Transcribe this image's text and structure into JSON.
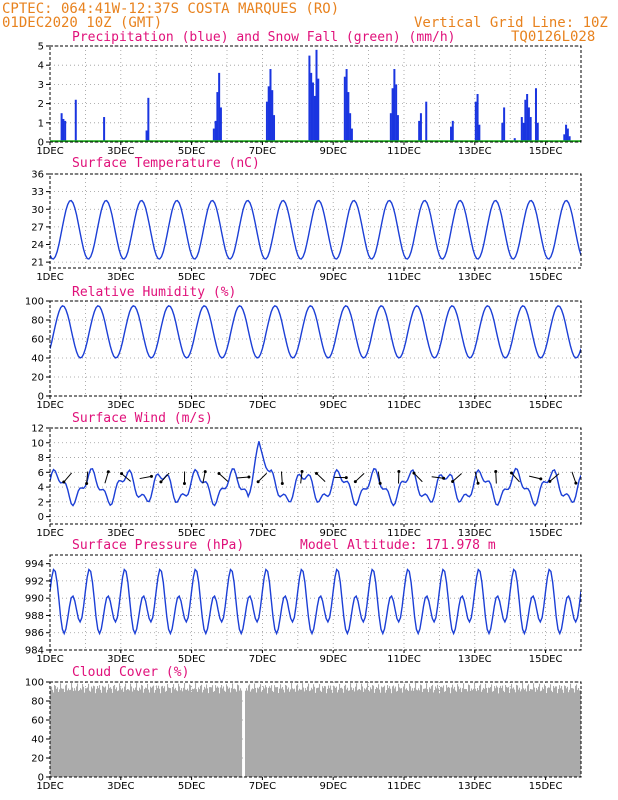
{
  "header": {
    "line1": "CPTEC:   064:41W-12:37S  COSTA MARQUES (RO)",
    "line2_left": "01DEC2020 10Z (GMT)",
    "line2_right": "Vertical Grid Line: 10Z",
    "line3_right": "TQ0126L028"
  },
  "colors": {
    "line": "#1c3fd6",
    "bar": "#1a35e0",
    "snow": "#1aa61a",
    "cloud": "#aaaaaa",
    "header": "#e8821e",
    "title": "#e0107a"
  },
  "x_labels": [
    "1DEC",
    "3DEC",
    "5DEC",
    "7DEC",
    "9DEC",
    "11DEC",
    "13DEC",
    "15DEC"
  ],
  "chart_data": [
    {
      "type": "bar",
      "title": "Precipitation (blue) and Snow Fall (green) (mm/h)",
      "ylim": [
        0,
        5
      ],
      "yticks": [
        "0",
        "1",
        "2",
        "3",
        "4",
        "5"
      ],
      "series": [
        {
          "name": "Precipitation",
          "points": [
            [
              0.3,
              1.5
            ],
            [
              0.35,
              1.2
            ],
            [
              0.4,
              1.1
            ],
            [
              0.7,
              2.2
            ],
            [
              1.5,
              1.3
            ],
            [
              2.7,
              0.6
            ],
            [
              2.75,
              2.3
            ],
            [
              4.6,
              0.7
            ],
            [
              4.65,
              1.1
            ],
            [
              4.7,
              2.6
            ],
            [
              4.75,
              3.6
            ],
            [
              4.8,
              1.8
            ],
            [
              6.1,
              2.1
            ],
            [
              6.15,
              2.9
            ],
            [
              6.2,
              3.8
            ],
            [
              6.25,
              2.7
            ],
            [
              6.3,
              1.4
            ],
            [
              7.3,
              4.5
            ],
            [
              7.35,
              3.6
            ],
            [
              7.4,
              3.1
            ],
            [
              7.45,
              2.4
            ],
            [
              7.5,
              4.8
            ],
            [
              7.55,
              3.3
            ],
            [
              8.3,
              3.4
            ],
            [
              8.35,
              3.8
            ],
            [
              8.4,
              2.6
            ],
            [
              8.45,
              1.5
            ],
            [
              8.5,
              0.7
            ],
            [
              9.6,
              1.5
            ],
            [
              9.65,
              2.8
            ],
            [
              9.7,
              3.8
            ],
            [
              9.75,
              3.0
            ],
            [
              9.8,
              1.4
            ],
            [
              10.4,
              1.1
            ],
            [
              10.45,
              1.5
            ],
            [
              10.6,
              2.1
            ],
            [
              11.3,
              0.8
            ],
            [
              11.35,
              1.1
            ],
            [
              12.0,
              2.1
            ],
            [
              12.05,
              2.5
            ],
            [
              12.1,
              0.9
            ],
            [
              12.75,
              1.0
            ],
            [
              12.8,
              1.8
            ],
            [
              13.1,
              0.2
            ],
            [
              13.3,
              1.3
            ],
            [
              13.35,
              1.0
            ],
            [
              13.4,
              2.2
            ],
            [
              13.45,
              2.5
            ],
            [
              13.5,
              1.8
            ],
            [
              13.55,
              1.3
            ],
            [
              13.7,
              2.8
            ],
            [
              13.75,
              1.0
            ],
            [
              14.5,
              0.4
            ],
            [
              14.55,
              0.9
            ],
            [
              14.6,
              0.7
            ],
            [
              14.65,
              0.3
            ],
            [
              15.0,
              1.3
            ],
            [
              15.05,
              0.5
            ],
            [
              15.4,
              1.7
            ],
            [
              15.45,
              2.9
            ],
            [
              15.5,
              1.5
            ]
          ]
        },
        {
          "name": "Snow Fall",
          "constant": 0
        }
      ]
    },
    {
      "type": "line",
      "title": "Surface Temperature (nC)",
      "ylim": [
        20,
        36
      ],
      "yticks": [
        "21",
        "24",
        "27",
        "30",
        "33",
        "36"
      ],
      "period": 1,
      "series": [
        {
          "name": "Temperature",
          "x0": 0.0,
          "x1": 15.0,
          "min": 21.5,
          "max": 31.5
        }
      ]
    },
    {
      "type": "line",
      "title": "Relative Humidity (%)",
      "ylim": [
        0,
        100
      ],
      "yticks": [
        "0",
        "20",
        "40",
        "60",
        "80",
        "100"
      ],
      "series": [
        {
          "name": "Humidity",
          "x0": 0.0,
          "x1": 15.0,
          "min": 40,
          "max": 95
        }
      ]
    },
    {
      "type": "line",
      "title": "Surface Wind (m/s)",
      "ylim": [
        -1,
        12
      ],
      "yticks": [
        "0",
        "2",
        "4",
        "6",
        "8",
        "10",
        "12"
      ],
      "series": [
        {
          "name": "Wind",
          "x0": 0.0,
          "x1": 15.0,
          "min": 1,
          "max": 7,
          "peak_x": 5.9,
          "peak": 10.2
        }
      ]
    },
    {
      "type": "line",
      "title": "Surface Pressure (hPa)",
      "extra_label": "Model Altitude: 171.978  m",
      "ylim": [
        984,
        995
      ],
      "yticks": [
        "984",
        "986",
        "988",
        "990",
        "992",
        "994"
      ],
      "series": [
        {
          "name": "Pressure",
          "x0": 0.0,
          "x1": 15.0,
          "min": 985,
          "max": 993.5
        }
      ]
    },
    {
      "type": "bar",
      "title": "Cloud Cover (%)",
      "ylim": [
        0,
        100
      ],
      "yticks": [
        "0",
        "20",
        "40",
        "60",
        "80",
        "100"
      ],
      "series": [
        {
          "name": "Cloud Cover",
          "min": 88,
          "max": 99,
          "gap_x": 5.45
        }
      ]
    }
  ]
}
